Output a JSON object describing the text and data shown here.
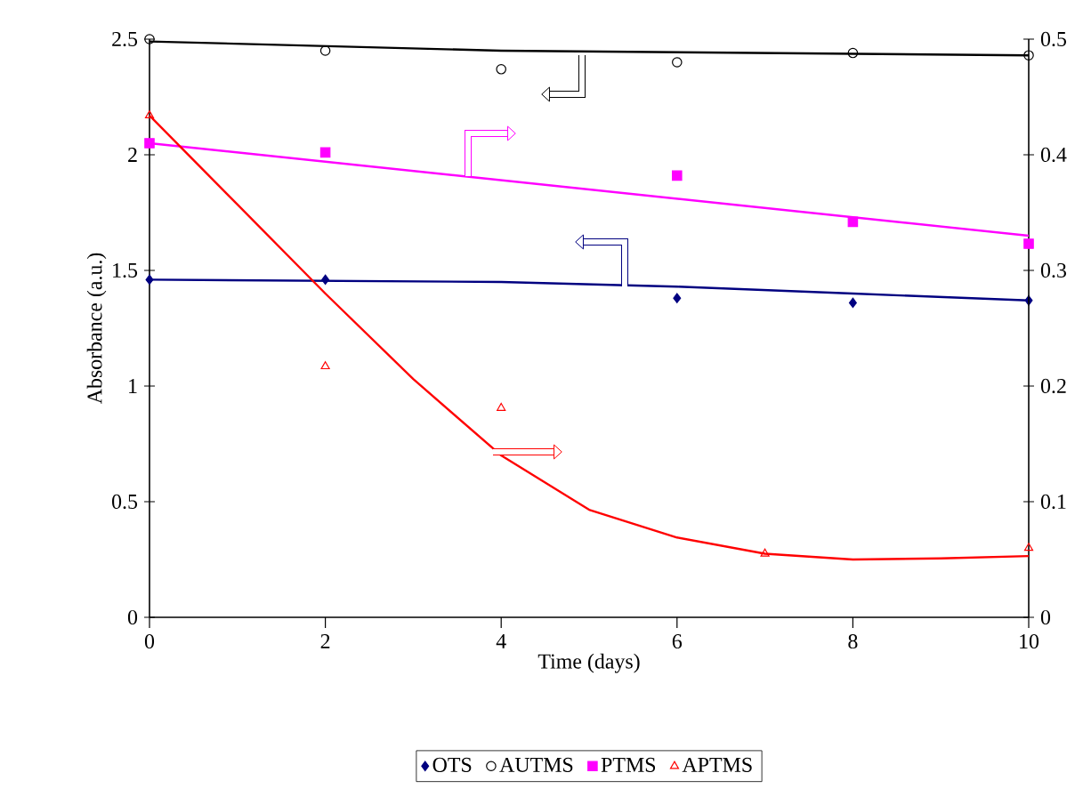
{
  "chart_data": {
    "type": "scatter",
    "xlabel": "Time (days)",
    "ylabel": "Absorbance (a.u.)",
    "xlim": [
      0,
      10
    ],
    "xticks": [
      0,
      2,
      4,
      6,
      8,
      10
    ],
    "ylim": [
      0,
      2.5
    ],
    "yticks": [
      0,
      0.5,
      1,
      1.5,
      2,
      2.5
    ],
    "y2lim": [
      0,
      0.5
    ],
    "y2ticks": [
      0,
      0.1,
      0.2,
      0.3,
      0.4,
      0.5
    ],
    "legend": "bottom",
    "series": [
      {
        "name": "OTS",
        "color": "#000080",
        "marker": "diamond",
        "axis": "y",
        "x": [
          0,
          2,
          6,
          8,
          10
        ],
        "values": [
          1.46,
          1.46,
          1.38,
          1.36,
          1.37
        ]
      },
      {
        "name": "AUTMS",
        "color": "#000000",
        "marker": "circle",
        "axis": "y",
        "x": [
          0,
          2,
          4,
          6,
          8,
          10
        ],
        "values": [
          2.5,
          2.45,
          2.37,
          2.4,
          2.44,
          2.43
        ]
      },
      {
        "name": "PTMS",
        "color": "#ff00ff",
        "marker": "square",
        "axis": "y2",
        "x": [
          0,
          2,
          6,
          8,
          10
        ],
        "values": [
          0.41,
          0.402,
          0.382,
          0.342,
          0.323
        ]
      },
      {
        "name": "APTMS",
        "color": "#ff0000",
        "marker": "triangle",
        "axis": "y2",
        "x": [
          0,
          2,
          4,
          7,
          10
        ],
        "values": [
          0.434,
          0.217,
          0.181,
          0.055,
          0.06
        ]
      },
      {
        "type": "line",
        "color": "#000080",
        "marker": "none",
        "axis": "y",
        "x": [
          0,
          4,
          6,
          8,
          10
        ],
        "values": [
          1.46,
          1.45,
          1.43,
          1.4,
          1.37
        ]
      },
      {
        "type": "line",
        "color": "#000000",
        "marker": "none",
        "axis": "y",
        "x": [
          0,
          4,
          10
        ],
        "values": [
          2.49,
          2.45,
          2.43
        ]
      },
      {
        "type": "line",
        "color": "#ff00ff",
        "marker": "none",
        "axis": "y2",
        "x": [
          0,
          10
        ],
        "values": [
          0.41,
          0.33
        ]
      },
      {
        "type": "line",
        "color": "#ff0000",
        "marker": "none",
        "axis": "y2",
        "x": [
          0,
          1,
          2,
          3,
          4,
          5,
          6,
          7,
          8,
          9,
          10
        ],
        "values": [
          0.434,
          0.357,
          0.28,
          0.206,
          0.14,
          0.093,
          0.069,
          0.055,
          0.05,
          0.051,
          0.053
        ]
      }
    ]
  }
}
